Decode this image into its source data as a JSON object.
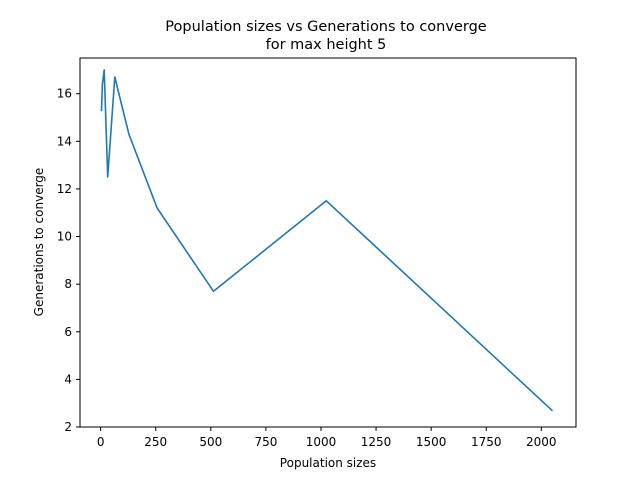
{
  "chart_data": {
    "type": "line",
    "title": "Population sizes vs Generations to converge",
    "subtitle": "for max height 5",
    "xlabel": "Population sizes",
    "ylabel": "Generations to converge",
    "xlim": [
      -93.75,
      2157.5
    ],
    "ylim": [
      2.0,
      17.5
    ],
    "xticks": [
      0,
      250,
      500,
      750,
      1000,
      1250,
      1500,
      1750,
      2000
    ],
    "yticks": [
      2,
      4,
      6,
      8,
      10,
      12,
      14,
      16
    ],
    "grid": false,
    "series": [
      {
        "color": "#1f77b4",
        "x": [
          4,
          8,
          16,
          32,
          64,
          128,
          256,
          512,
          1024,
          2048
        ],
        "y": [
          15.3,
          16.4,
          17.0,
          12.5,
          16.7,
          14.3,
          11.2,
          7.7,
          11.5,
          2.7
        ]
      }
    ]
  }
}
